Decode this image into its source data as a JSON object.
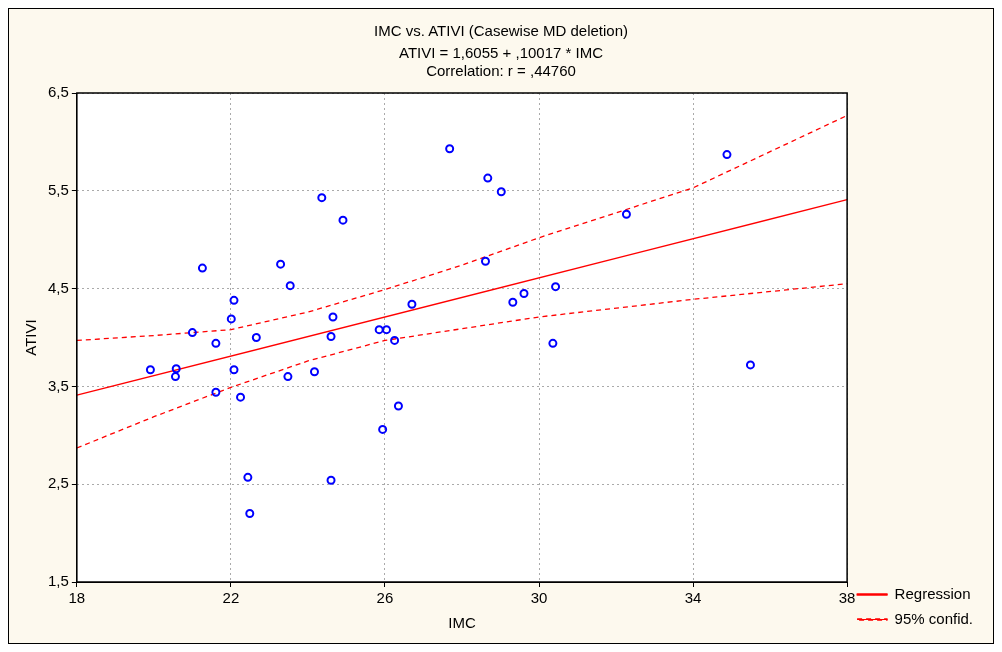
{
  "chart_data": {
    "type": "scatter",
    "title": "IMC vs. ATIVI (Casewise MD deletion)",
    "subtitle": "ATIVI = 1,6055 + ,10017 * IMC",
    "annotations": [
      "Correlation: r = ,44760"
    ],
    "xlabel": "IMC",
    "ylabel": "ATIVI",
    "xlim": [
      18,
      38
    ],
    "xticks": [
      18,
      22,
      26,
      30,
      34,
      38
    ],
    "ylim": [
      1.5,
      6.5
    ],
    "yticks": [
      {
        "value": 1.5,
        "label": "1,5"
      },
      {
        "value": 2.5,
        "label": "2,5"
      },
      {
        "value": 3.5,
        "label": "3,5"
      },
      {
        "value": 4.5,
        "label": "4,5"
      },
      {
        "value": 5.5,
        "label": "5,5"
      },
      {
        "value": 6.5,
        "label": "6,5"
      }
    ],
    "grid": true,
    "legend": "bottom right",
    "marker": "circle",
    "series": [
      {
        "color": "#0000ff",
        "x": [
          27.68,
          24.36,
          24.91,
          21.26,
          23.29,
          23.54,
          22.08,
          22.01,
          24.65,
          26.7,
          21.0,
          22.66,
          24.6,
          25.85,
          26.04,
          26.25,
          21.61,
          19.91,
          20.58,
          20.56,
          22.08,
          23.48,
          24.17,
          21.61,
          22.25,
          26.35,
          25.94,
          22.44,
          24.6,
          22.49,
          28.67,
          29.02,
          32.27,
          34.88,
          28.61,
          30.43,
          29.61,
          29.32,
          30.36,
          35.49
        ],
        "values": [
          5.93,
          5.43,
          5.2,
          4.71,
          4.75,
          4.53,
          4.38,
          4.19,
          4.21,
          4.34,
          4.05,
          4.0,
          4.01,
          4.08,
          4.08,
          3.97,
          3.94,
          3.67,
          3.68,
          3.6,
          3.67,
          3.6,
          3.65,
          3.44,
          3.39,
          3.3,
          3.06,
          2.57,
          2.54,
          2.2,
          5.63,
          5.49,
          5.26,
          5.87,
          4.78,
          4.52,
          4.45,
          4.36,
          3.94,
          3.72
        ]
      },
      {
        "type": "line",
        "name": "Regression",
        "color": "#ff0000",
        "line_style": "solid",
        "marker": "none",
        "x": [
          18,
          38
        ],
        "values": [
          3.41,
          5.41
        ]
      },
      {
        "type": "line",
        "name": "95% confid.",
        "color": "#ff0000",
        "line_style": "dashed",
        "marker": "none",
        "x": [
          18,
          20,
          22,
          24,
          26,
          28,
          30,
          34,
          38
        ],
        "values": [
          3.97,
          4.02,
          4.08,
          4.26,
          4.49,
          4.74,
          5.02,
          5.53,
          6.27
        ]
      },
      {
        "type": "line",
        "color": "#ff0000",
        "line_style": "dashed",
        "marker": "none",
        "x": [
          18,
          20,
          22,
          24,
          26,
          28,
          30,
          34,
          38
        ],
        "values": [
          2.87,
          3.19,
          3.49,
          3.76,
          3.97,
          4.09,
          4.21,
          4.39,
          4.55
        ]
      }
    ]
  }
}
